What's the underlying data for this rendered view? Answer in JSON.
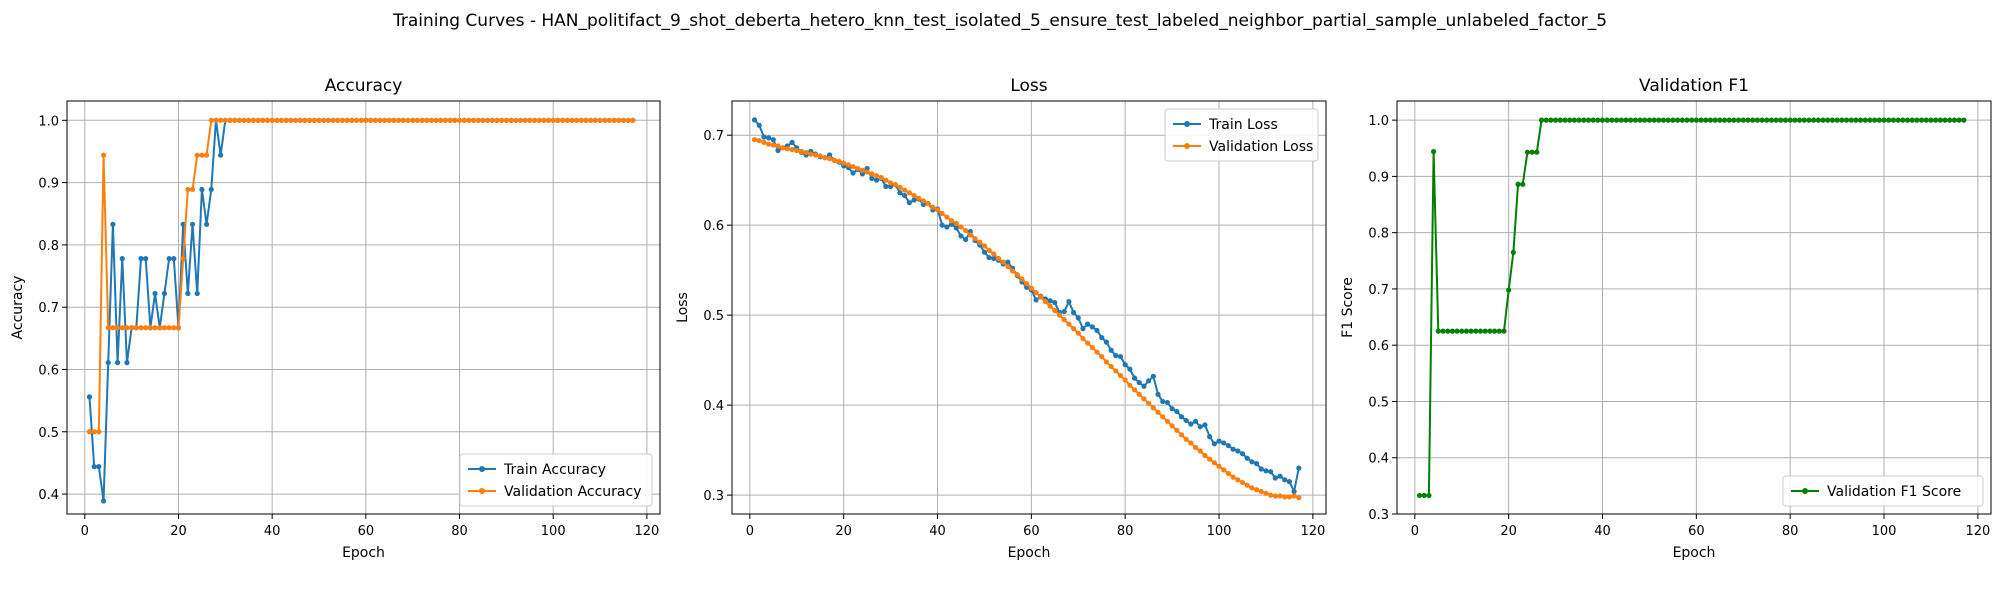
{
  "figure_title": "Training Curves - HAN_politifact_9_shot_deberta_hetero_knn_test_isolated_5_ensure_test_labeled_neighbor_partial_sample_unlabeled_factor_5",
  "colors": {
    "blue": "#1f77b4",
    "orange": "#ff7f0e",
    "green": "#008000",
    "grid": "#b0b0b0"
  },
  "chart_data": [
    {
      "type": "line",
      "title": "Accuracy",
      "xlabel": "Epoch",
      "ylabel": "Accuracy",
      "xlim": [
        -3.8,
        122.8
      ],
      "ylim": [
        0.368,
        1.031
      ],
      "xticks": [
        0,
        20,
        40,
        60,
        80,
        100,
        120
      ],
      "yticks": [
        0.4,
        0.5,
        0.6,
        0.7,
        0.8,
        0.9,
        1.0
      ],
      "xtick_labels": [
        "0",
        "20",
        "40",
        "60",
        "80",
        "100",
        "120"
      ],
      "ytick_labels": [
        "0.4",
        "0.5",
        "0.6",
        "0.7",
        "0.8",
        "0.9",
        "1.0"
      ],
      "grid": true,
      "legend_position": "lower-right",
      "x_start": 1,
      "series": [
        {
          "name": "Train Accuracy",
          "color": "#1f77b4",
          "values": [
            0.556,
            0.444,
            0.444,
            0.389,
            0.611,
            0.833,
            0.611,
            0.778,
            0.611,
            0.667,
            0.667,
            0.778,
            0.778,
            0.667,
            0.722,
            0.667,
            0.722,
            0.778,
            0.778,
            0.667,
            0.833,
            0.722,
            0.833,
            0.722,
            0.889,
            0.833,
            0.889,
            1.0,
            0.944,
            1.0,
            1.0,
            1.0,
            1.0,
            1.0,
            1.0,
            1.0,
            1.0,
            1.0,
            1.0,
            1.0,
            1.0,
            1.0,
            1.0,
            1.0,
            1.0,
            1.0,
            1.0,
            1.0,
            1.0,
            1.0,
            1.0,
            1.0,
            1.0,
            1.0,
            1.0,
            1.0,
            1.0,
            1.0,
            1.0,
            1.0,
            1.0,
            1.0,
            1.0,
            1.0,
            1.0,
            1.0,
            1.0,
            1.0,
            1.0,
            1.0,
            1.0,
            1.0,
            1.0,
            1.0,
            1.0,
            1.0,
            1.0,
            1.0,
            1.0,
            1.0,
            1.0,
            1.0,
            1.0,
            1.0,
            1.0,
            1.0,
            1.0,
            1.0,
            1.0,
            1.0,
            1.0,
            1.0,
            1.0,
            1.0,
            1.0,
            1.0,
            1.0,
            1.0,
            1.0,
            1.0,
            1.0,
            1.0,
            1.0,
            1.0,
            1.0,
            1.0,
            1.0,
            1.0,
            1.0,
            1.0,
            1.0,
            1.0,
            1.0,
            1.0,
            1.0,
            1.0,
            1.0
          ]
        },
        {
          "name": "Validation Accuracy",
          "color": "#ff7f0e",
          "values": [
            0.5,
            0.5,
            0.5,
            0.944,
            0.667,
            0.667,
            0.667,
            0.667,
            0.667,
            0.667,
            0.667,
            0.667,
            0.667,
            0.667,
            0.667,
            0.667,
            0.667,
            0.667,
            0.667,
            0.667,
            0.778,
            0.889,
            0.889,
            0.944,
            0.944,
            0.944,
            1.0,
            1.0,
            1.0,
            1.0,
            1.0,
            1.0,
            1.0,
            1.0,
            1.0,
            1.0,
            1.0,
            1.0,
            1.0,
            1.0,
            1.0,
            1.0,
            1.0,
            1.0,
            1.0,
            1.0,
            1.0,
            1.0,
            1.0,
            1.0,
            1.0,
            1.0,
            1.0,
            1.0,
            1.0,
            1.0,
            1.0,
            1.0,
            1.0,
            1.0,
            1.0,
            1.0,
            1.0,
            1.0,
            1.0,
            1.0,
            1.0,
            1.0,
            1.0,
            1.0,
            1.0,
            1.0,
            1.0,
            1.0,
            1.0,
            1.0,
            1.0,
            1.0,
            1.0,
            1.0,
            1.0,
            1.0,
            1.0,
            1.0,
            1.0,
            1.0,
            1.0,
            1.0,
            1.0,
            1.0,
            1.0,
            1.0,
            1.0,
            1.0,
            1.0,
            1.0,
            1.0,
            1.0,
            1.0,
            1.0,
            1.0,
            1.0,
            1.0,
            1.0,
            1.0,
            1.0,
            1.0,
            1.0,
            1.0,
            1.0,
            1.0,
            1.0,
            1.0,
            1.0,
            1.0,
            1.0,
            1.0
          ]
        }
      ]
    },
    {
      "type": "line",
      "title": "Loss",
      "xlabel": "Epoch",
      "ylabel": "Loss",
      "xlim": [
        -3.8,
        122.8
      ],
      "ylim": [
        0.279,
        0.738
      ],
      "xticks": [
        0,
        20,
        40,
        60,
        80,
        100,
        120
      ],
      "yticks": [
        0.3,
        0.4,
        0.5,
        0.6,
        0.7
      ],
      "xtick_labels": [
        "0",
        "20",
        "40",
        "60",
        "80",
        "100",
        "120"
      ],
      "ytick_labels": [
        "0.3",
        "0.4",
        "0.5",
        "0.6",
        "0.7"
      ],
      "grid": true,
      "legend_position": "upper-right",
      "x_start": 1,
      "series": [
        {
          "name": "Train Loss",
          "color": "#1f77b4",
          "values": [
            0.717,
            0.711,
            0.698,
            0.697,
            0.695,
            0.683,
            0.686,
            0.688,
            0.692,
            0.686,
            0.681,
            0.678,
            0.682,
            0.679,
            0.676,
            0.675,
            0.678,
            0.672,
            0.67,
            0.666,
            0.664,
            0.658,
            0.662,
            0.657,
            0.663,
            0.652,
            0.65,
            0.652,
            0.643,
            0.643,
            0.645,
            0.636,
            0.633,
            0.625,
            0.628,
            0.629,
            0.623,
            0.624,
            0.617,
            0.618,
            0.6,
            0.598,
            0.601,
            0.597,
            0.588,
            0.584,
            0.593,
            0.583,
            0.578,
            0.57,
            0.564,
            0.563,
            0.561,
            0.557,
            0.559,
            0.552,
            0.544,
            0.537,
            0.531,
            0.528,
            0.517,
            0.521,
            0.518,
            0.516,
            0.514,
            0.503,
            0.504,
            0.515,
            0.503,
            0.497,
            0.485,
            0.49,
            0.487,
            0.483,
            0.475,
            0.47,
            0.461,
            0.455,
            0.454,
            0.445,
            0.44,
            0.43,
            0.425,
            0.421,
            0.427,
            0.432,
            0.412,
            0.404,
            0.403,
            0.396,
            0.393,
            0.387,
            0.383,
            0.379,
            0.382,
            0.376,
            0.378,
            0.365,
            0.357,
            0.36,
            0.358,
            0.355,
            0.351,
            0.349,
            0.346,
            0.341,
            0.337,
            0.335,
            0.329,
            0.327,
            0.326,
            0.319,
            0.321,
            0.317,
            0.315,
            0.304,
            0.33
          ]
        },
        {
          "name": "Validation Loss",
          "color": "#ff7f0e",
          "values": [
            0.695,
            0.694,
            0.692,
            0.69,
            0.689,
            0.688,
            0.686,
            0.685,
            0.684,
            0.683,
            0.682,
            0.681,
            0.679,
            0.678,
            0.677,
            0.675,
            0.674,
            0.672,
            0.671,
            0.669,
            0.667,
            0.665,
            0.663,
            0.661,
            0.659,
            0.657,
            0.655,
            0.653,
            0.65,
            0.647,
            0.645,
            0.642,
            0.639,
            0.636,
            0.633,
            0.63,
            0.627,
            0.624,
            0.62,
            0.617,
            0.613,
            0.609,
            0.605,
            0.602,
            0.598,
            0.594,
            0.589,
            0.585,
            0.581,
            0.577,
            0.572,
            0.568,
            0.563,
            0.559,
            0.554,
            0.549,
            0.545,
            0.54,
            0.535,
            0.53,
            0.525,
            0.52,
            0.515,
            0.51,
            0.505,
            0.5,
            0.495,
            0.49,
            0.485,
            0.48,
            0.474,
            0.469,
            0.464,
            0.459,
            0.454,
            0.448,
            0.443,
            0.438,
            0.433,
            0.428,
            0.422,
            0.417,
            0.412,
            0.407,
            0.402,
            0.397,
            0.392,
            0.387,
            0.382,
            0.377,
            0.372,
            0.367,
            0.362,
            0.358,
            0.353,
            0.349,
            0.344,
            0.34,
            0.336,
            0.332,
            0.328,
            0.324,
            0.32,
            0.317,
            0.314,
            0.311,
            0.308,
            0.306,
            0.304,
            0.302,
            0.3,
            0.299,
            0.299,
            0.298,
            0.298,
            0.299,
            0.297
          ]
        }
      ]
    },
    {
      "type": "line",
      "title": "Validation F1",
      "xlabel": "Epoch",
      "ylabel": "F1 Score",
      "xlim": [
        -3.8,
        122.8
      ],
      "ylim": [
        0.3,
        1.034
      ],
      "xticks": [
        0,
        20,
        40,
        60,
        80,
        100,
        120
      ],
      "yticks": [
        0.3,
        0.4,
        0.5,
        0.6,
        0.7,
        0.8,
        0.9,
        1.0
      ],
      "xtick_labels": [
        "0",
        "20",
        "40",
        "60",
        "80",
        "100",
        "120"
      ],
      "ytick_labels": [
        "0.3",
        "0.4",
        "0.5",
        "0.6",
        "0.7",
        "0.8",
        "0.9",
        "1.0"
      ],
      "grid": true,
      "legend_position": "lower-right",
      "x_start": 1,
      "series": [
        {
          "name": "Validation F1 Score",
          "color": "#008000",
          "values": [
            0.333,
            0.333,
            0.333,
            0.944,
            0.625,
            0.625,
            0.625,
            0.625,
            0.625,
            0.625,
            0.625,
            0.625,
            0.625,
            0.625,
            0.625,
            0.625,
            0.625,
            0.625,
            0.625,
            0.698,
            0.765,
            0.886,
            0.886,
            0.943,
            0.943,
            0.943,
            1.0,
            1.0,
            1.0,
            1.0,
            1.0,
            1.0,
            1.0,
            1.0,
            1.0,
            1.0,
            1.0,
            1.0,
            1.0,
            1.0,
            1.0,
            1.0,
            1.0,
            1.0,
            1.0,
            1.0,
            1.0,
            1.0,
            1.0,
            1.0,
            1.0,
            1.0,
            1.0,
            1.0,
            1.0,
            1.0,
            1.0,
            1.0,
            1.0,
            1.0,
            1.0,
            1.0,
            1.0,
            1.0,
            1.0,
            1.0,
            1.0,
            1.0,
            1.0,
            1.0,
            1.0,
            1.0,
            1.0,
            1.0,
            1.0,
            1.0,
            1.0,
            1.0,
            1.0,
            1.0,
            1.0,
            1.0,
            1.0,
            1.0,
            1.0,
            1.0,
            1.0,
            1.0,
            1.0,
            1.0,
            1.0,
            1.0,
            1.0,
            1.0,
            1.0,
            1.0,
            1.0,
            1.0,
            1.0,
            1.0,
            1.0,
            1.0,
            1.0,
            1.0,
            1.0,
            1.0,
            1.0,
            1.0,
            1.0,
            1.0,
            1.0,
            1.0,
            1.0,
            1.0,
            1.0,
            1.0,
            1.0
          ]
        }
      ]
    }
  ]
}
